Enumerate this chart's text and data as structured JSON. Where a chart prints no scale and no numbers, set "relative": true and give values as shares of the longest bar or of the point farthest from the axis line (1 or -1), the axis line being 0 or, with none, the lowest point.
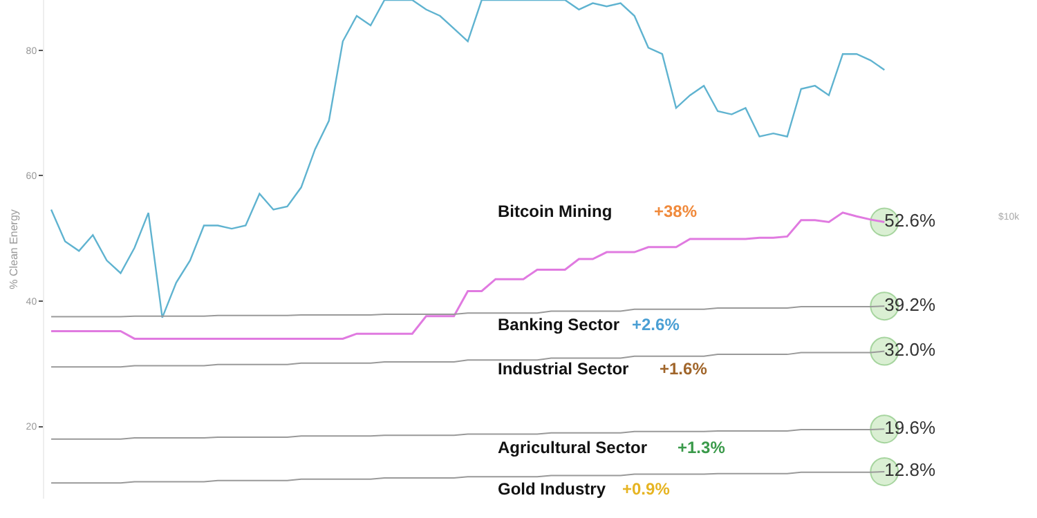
{
  "chart_data": [
    {
      "type": "line",
      "relative": true,
      "tick_labels": false,
      "legend": false,
      "categories": [
        null,
        null,
        null,
        null,
        null,
        null,
        null,
        null,
        null,
        null,
        null,
        null,
        null,
        null,
        null,
        null,
        null,
        null,
        null,
        null,
        null,
        null,
        null,
        null,
        null,
        null,
        null,
        null,
        null,
        null,
        null,
        null,
        null,
        null,
        null,
        null,
        null,
        null,
        null,
        null,
        null,
        null,
        null,
        null,
        null,
        null,
        null,
        null,
        null,
        null,
        null,
        null,
        null,
        null,
        null,
        null,
        null,
        null,
        null,
        null,
        null
      ],
      "series": [
        {
          "color": "#5fb3d0",
          "values": [
            0.34,
            0.24,
            0.21,
            0.26,
            0.18,
            0.14,
            0.22,
            0.33,
            0,
            0.11,
            0.18,
            0.29,
            0.29,
            0.28,
            0.29,
            0.39,
            0.34,
            0.35,
            0.41,
            0.53,
            0.62,
            0.87,
            0.95,
            0.92,
            1,
            1,
            1,
            0.97,
            0.95,
            0.91,
            0.87,
            1,
            1,
            1,
            1,
            1,
            1,
            1,
            0.97,
            0.99,
            0.98,
            0.99,
            0.95,
            0.85,
            0.83,
            0.66,
            0.7,
            0.73,
            0.65,
            0.64,
            0.66,
            0.57,
            0.58,
            0.57,
            0.72,
            0.73,
            0.7,
            0.83,
            0.83,
            0.81,
            0.78
          ]
        }
      ],
      "annotations": [
        "$10k"
      ]
    },
    {
      "type": "line",
      "ylabel": "% Clean Energy",
      "categories": [
        null,
        null,
        null,
        null,
        null,
        null,
        null,
        null,
        null,
        null,
        null,
        null,
        null,
        null,
        null,
        null,
        null,
        null,
        null,
        null,
        null,
        null,
        null,
        null,
        null,
        null,
        null,
        null,
        null,
        null,
        null,
        null,
        null,
        null,
        null,
        null,
        null,
        null,
        null,
        null,
        null,
        null,
        null,
        null,
        null,
        null,
        null,
        null,
        null,
        null,
        null,
        null,
        null,
        null,
        null,
        null,
        null,
        null,
        null,
        null,
        null
      ],
      "ylim": [
        8.5,
        88
      ],
      "yticks": [
        20,
        40,
        60,
        80
      ],
      "tick_labels": "y",
      "grid": false,
      "legend": false,
      "series": [
        {
          "name": "Bitcoin Mining",
          "color": "#e07ae0",
          "values": [
            35.2,
            35.2,
            35.2,
            35.2,
            35.2,
            35.2,
            34.0,
            34.0,
            34.0,
            34.0,
            34.0,
            34.0,
            34.0,
            34.0,
            34.0,
            34.0,
            34.0,
            34.0,
            34.0,
            34.0,
            34.0,
            34.0,
            34.8,
            34.8,
            34.8,
            34.8,
            34.8,
            37.6,
            37.6,
            37.6,
            41.6,
            41.6,
            43.5,
            43.5,
            43.5,
            45.0,
            45.0,
            45.0,
            46.7,
            46.7,
            47.8,
            47.8,
            47.8,
            48.6,
            48.6,
            48.6,
            49.9,
            49.9,
            49.9,
            49.9,
            49.9,
            50.1,
            50.1,
            50.3,
            52.9,
            52.9,
            52.6,
            54.1,
            53.5,
            53.0,
            52.6
          ],
          "value_labels": [
            null,
            null,
            null,
            null,
            null,
            null,
            null,
            null,
            null,
            null,
            null,
            null,
            null,
            null,
            null,
            null,
            null,
            null,
            null,
            null,
            null,
            null,
            null,
            null,
            null,
            null,
            null,
            null,
            null,
            null,
            null,
            null,
            null,
            null,
            null,
            null,
            null,
            null,
            null,
            null,
            null,
            null,
            null,
            null,
            null,
            null,
            null,
            null,
            null,
            null,
            null,
            null,
            null,
            null,
            null,
            null,
            null,
            null,
            null,
            null,
            "52.6%"
          ]
        },
        {
          "name": "Banking Sector",
          "color": "#999999",
          "values": [
            37.5,
            37.5,
            37.5,
            37.5,
            37.5,
            37.5,
            37.6,
            37.6,
            37.6,
            37.6,
            37.6,
            37.6,
            37.7,
            37.7,
            37.7,
            37.7,
            37.7,
            37.7,
            37.8,
            37.8,
            37.8,
            37.8,
            37.8,
            37.8,
            37.9,
            37.9,
            37.9,
            37.9,
            37.9,
            37.9,
            38.1,
            38.1,
            38.1,
            38.1,
            38.1,
            38.1,
            38.4,
            38.4,
            38.4,
            38.4,
            38.4,
            38.4,
            38.7,
            38.7,
            38.7,
            38.7,
            38.7,
            38.7,
            38.9,
            38.9,
            38.9,
            38.9,
            38.9,
            38.9,
            39.1,
            39.1,
            39.1,
            39.1,
            39.1,
            39.1,
            39.2
          ],
          "value_labels": [
            null,
            null,
            null,
            null,
            null,
            null,
            null,
            null,
            null,
            null,
            null,
            null,
            null,
            null,
            null,
            null,
            null,
            null,
            null,
            null,
            null,
            null,
            null,
            null,
            null,
            null,
            null,
            null,
            null,
            null,
            null,
            null,
            null,
            null,
            null,
            null,
            null,
            null,
            null,
            null,
            null,
            null,
            null,
            null,
            null,
            null,
            null,
            null,
            null,
            null,
            null,
            null,
            null,
            null,
            null,
            null,
            null,
            null,
            null,
            null,
            "39.2%"
          ]
        },
        {
          "name": "Industrial Sector",
          "color": "#999999",
          "values": [
            29.5,
            29.5,
            29.5,
            29.5,
            29.5,
            29.5,
            29.7,
            29.7,
            29.7,
            29.7,
            29.7,
            29.7,
            29.9,
            29.9,
            29.9,
            29.9,
            29.9,
            29.9,
            30.1,
            30.1,
            30.1,
            30.1,
            30.1,
            30.1,
            30.3,
            30.3,
            30.3,
            30.3,
            30.3,
            30.3,
            30.6,
            30.6,
            30.6,
            30.6,
            30.6,
            30.6,
            30.9,
            30.9,
            30.9,
            30.9,
            30.9,
            30.9,
            31.2,
            31.2,
            31.2,
            31.2,
            31.2,
            31.2,
            31.5,
            31.5,
            31.5,
            31.5,
            31.5,
            31.5,
            31.8,
            31.8,
            31.8,
            31.8,
            31.8,
            31.8,
            32.0
          ],
          "value_labels": [
            null,
            null,
            null,
            null,
            null,
            null,
            null,
            null,
            null,
            null,
            null,
            null,
            null,
            null,
            null,
            null,
            null,
            null,
            null,
            null,
            null,
            null,
            null,
            null,
            null,
            null,
            null,
            null,
            null,
            null,
            null,
            null,
            null,
            null,
            null,
            null,
            null,
            null,
            null,
            null,
            null,
            null,
            null,
            null,
            null,
            null,
            null,
            null,
            null,
            null,
            null,
            null,
            null,
            null,
            null,
            null,
            null,
            null,
            null,
            null,
            "32.0%"
          ]
        },
        {
          "name": "Agricultural Sector",
          "color": "#999999",
          "values": [
            18.0,
            18.0,
            18.0,
            18.0,
            18.0,
            18.0,
            18.2,
            18.2,
            18.2,
            18.2,
            18.2,
            18.2,
            18.3,
            18.3,
            18.3,
            18.3,
            18.3,
            18.3,
            18.5,
            18.5,
            18.5,
            18.5,
            18.5,
            18.5,
            18.6,
            18.6,
            18.6,
            18.6,
            18.6,
            18.6,
            18.8,
            18.8,
            18.8,
            18.8,
            18.8,
            18.8,
            19.0,
            19.0,
            19.0,
            19.0,
            19.0,
            19.0,
            19.2,
            19.2,
            19.2,
            19.2,
            19.2,
            19.2,
            19.3,
            19.3,
            19.3,
            19.3,
            19.3,
            19.3,
            19.5,
            19.5,
            19.5,
            19.5,
            19.5,
            19.5,
            19.6
          ],
          "value_labels": [
            null,
            null,
            null,
            null,
            null,
            null,
            null,
            null,
            null,
            null,
            null,
            null,
            null,
            null,
            null,
            null,
            null,
            null,
            null,
            null,
            null,
            null,
            null,
            null,
            null,
            null,
            null,
            null,
            null,
            null,
            null,
            null,
            null,
            null,
            null,
            null,
            null,
            null,
            null,
            null,
            null,
            null,
            null,
            null,
            null,
            null,
            null,
            null,
            null,
            null,
            null,
            null,
            null,
            null,
            null,
            null,
            null,
            null,
            null,
            null,
            "19.6%"
          ]
        },
        {
          "name": "Gold Industry",
          "color": "#999999",
          "values": [
            11.0,
            11.0,
            11.0,
            11.0,
            11.0,
            11.0,
            11.2,
            11.2,
            11.2,
            11.2,
            11.2,
            11.2,
            11.4,
            11.4,
            11.4,
            11.4,
            11.4,
            11.4,
            11.6,
            11.6,
            11.6,
            11.6,
            11.6,
            11.6,
            11.8,
            11.8,
            11.8,
            11.8,
            11.8,
            11.8,
            12.0,
            12.0,
            12.0,
            12.0,
            12.0,
            12.0,
            12.2,
            12.2,
            12.2,
            12.2,
            12.2,
            12.2,
            12.4,
            12.4,
            12.4,
            12.4,
            12.4,
            12.4,
            12.5,
            12.5,
            12.5,
            12.5,
            12.5,
            12.5,
            12.7,
            12.7,
            12.7,
            12.7,
            12.7,
            12.7,
            12.8
          ],
          "value_labels": [
            null,
            null,
            null,
            null,
            null,
            null,
            null,
            null,
            null,
            null,
            null,
            null,
            null,
            null,
            null,
            null,
            null,
            null,
            null,
            null,
            null,
            null,
            null,
            null,
            null,
            null,
            null,
            null,
            null,
            null,
            null,
            null,
            null,
            null,
            null,
            null,
            null,
            null,
            null,
            null,
            null,
            null,
            null,
            null,
            null,
            null,
            null,
            null,
            null,
            null,
            null,
            null,
            null,
            null,
            null,
            null,
            null,
            null,
            null,
            null,
            "12.8%"
          ]
        }
      ],
      "annotations": [
        "+38%",
        "+2.6%",
        "+1.6%",
        "+1.3%",
        "+0.9%"
      ]
    }
  ]
}
